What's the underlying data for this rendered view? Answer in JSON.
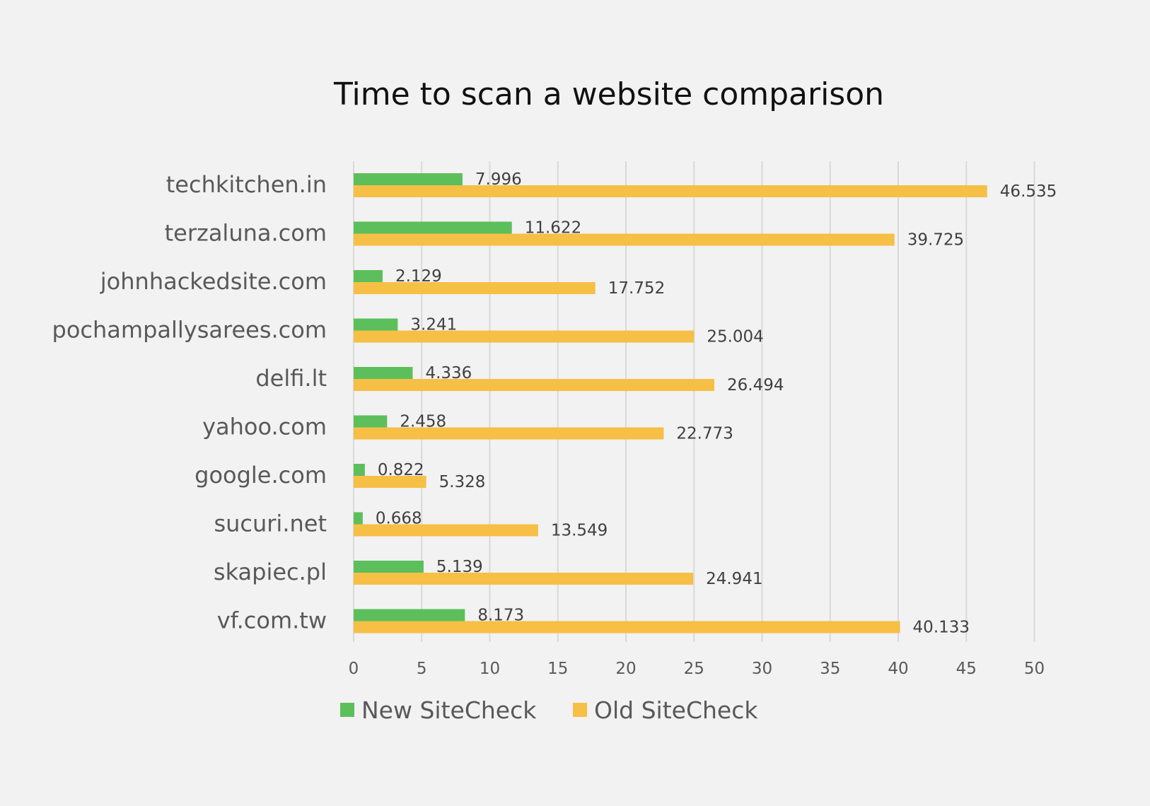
{
  "colors": {
    "background": "#f2f2f2",
    "new_series": "#5cbf5c",
    "old_series": "#f6bf45",
    "grid": "#d9d9d9",
    "text": "#595959"
  },
  "chart_data": {
    "type": "bar",
    "orientation": "horizontal",
    "title": "Time to scan a website comparison",
    "xlabel": "",
    "ylabel": "",
    "xlim": [
      0,
      50
    ],
    "xticks": [
      0,
      5,
      10,
      15,
      20,
      25,
      30,
      35,
      40,
      45,
      50
    ],
    "grid": true,
    "legend_position": "bottom",
    "categories": [
      "techkitchen.in",
      "terzaluna.com",
      "johnhackedsite.com",
      "pochampallysarees.com",
      "delfi.lt",
      "yahoo.com",
      "google.com",
      "sucuri.net",
      "skapiec.pl",
      "vf.com.tw"
    ],
    "series": [
      {
        "name": "New SiteCheck",
        "color": "#5cbf5c",
        "values": [
          7.996,
          11.622,
          2.129,
          3.241,
          4.336,
          2.458,
          0.822,
          0.668,
          5.139,
          8.173
        ],
        "labels": [
          "7.996",
          "11.622",
          "2.129",
          "3.241",
          "4.336",
          "2.458",
          "0.822",
          "0.668",
          "5.139",
          "8.173"
        ]
      },
      {
        "name": "Old SiteCheck",
        "color": "#f6bf45",
        "values": [
          46.535,
          39.725,
          17.752,
          25.004,
          26.494,
          22.773,
          5.328,
          13.549,
          24.941,
          40.133
        ],
        "labels": [
          "46.535",
          "39.725",
          "17.752",
          "25.004",
          "26.494",
          "22.773",
          "5.328",
          "13.549",
          "24.941",
          "40.133"
        ]
      }
    ]
  }
}
